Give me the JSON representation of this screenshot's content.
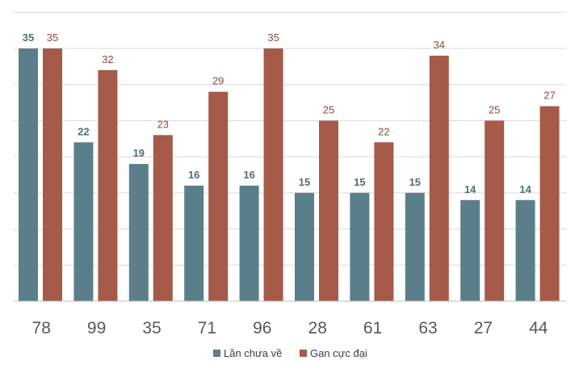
{
  "chart_data": {
    "type": "bar",
    "title": "",
    "xlabel": "",
    "ylabel": "",
    "ylim": [
      0,
      35
    ],
    "grid": true,
    "legend_position": "bottom",
    "categories": [
      "78",
      "99",
      "35",
      "71",
      "96",
      "28",
      "61",
      "63",
      "27",
      "44"
    ],
    "series": [
      {
        "name": "Lần chưa về",
        "color": "#5b7f8a",
        "values": [
          35,
          22,
          19,
          16,
          16,
          15,
          15,
          15,
          14,
          14
        ]
      },
      {
        "name": "Gan cực đại",
        "color": "#a55a4a",
        "values": [
          35,
          32,
          23,
          29,
          35,
          25,
          22,
          34,
          25,
          27
        ]
      }
    ]
  }
}
